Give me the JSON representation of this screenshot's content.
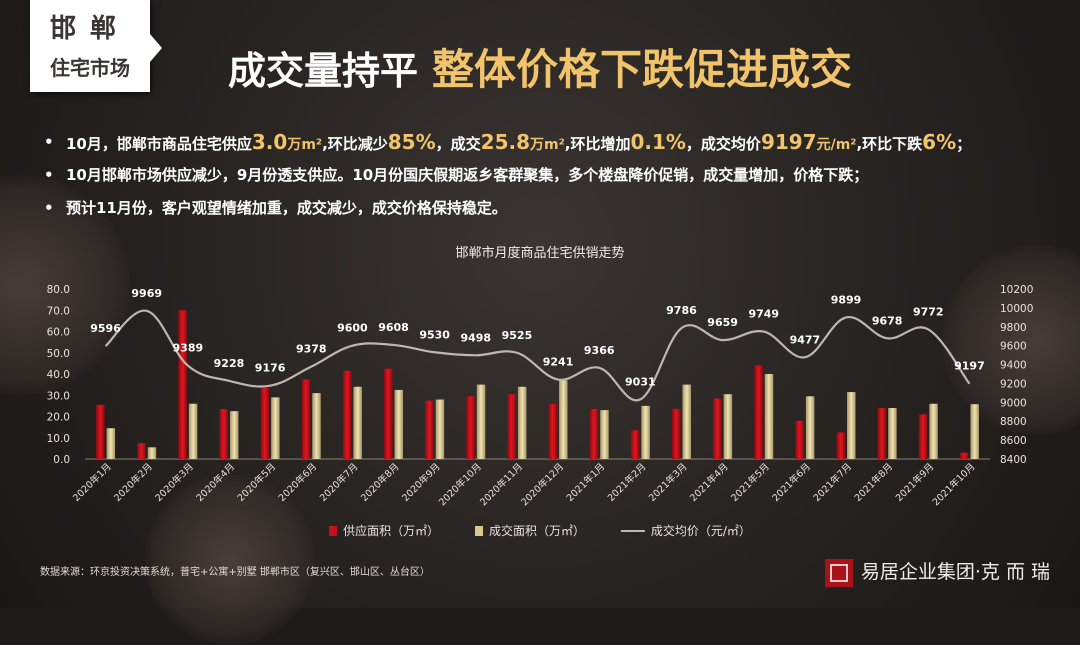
{
  "header": {
    "region_city": "邯郸",
    "region_sub": "住宅市场",
    "title_part1": "成交量持平",
    "title_part2": "整体价格下跌促进成交"
  },
  "bullets": {
    "b1": {
      "t1": "10月，邯郸市商品住宅供应",
      "v1": "3.0",
      "u1": "万m²",
      "t2": ",环比减少",
      "v2": "85%",
      "t3": "，成交",
      "v3": "25.8",
      "u3": "万m²",
      "t4": ",环比增加",
      "v4": "0.1%",
      "t5": "，成交均价",
      "v5": "9197",
      "u5": "元/m²",
      "t6": ",环比下跌",
      "v6": "6%",
      "t7": "；"
    },
    "b2": "10月邯郸市场供应减少，9月份透支供应。10月份国庆假期返乡客群聚集，多个楼盘降价促销，成交量增加，价格下跌；",
    "b3": "预计11月份，客户观望情绪加重，成交减少，成交价格保持稳定。"
  },
  "chart_data": {
    "type": "bar",
    "title": "邯郸市月度商品住宅供销走势",
    "categories": [
      "2020年1月",
      "2020年2月",
      "2020年3月",
      "2020年4月",
      "2020年5月",
      "2020年6月",
      "2020年7月",
      "2020年8月",
      "2020年9月",
      "2020年10月",
      "2020年11月",
      "2020年12月",
      "2021年1月",
      "2021年2月",
      "2021年3月",
      "2021年4月",
      "2021年5月",
      "2021年6月",
      "2021年7月",
      "2021年8月",
      "2021年9月",
      "2021年10月"
    ],
    "ylim": [
      0,
      80
    ],
    "y_ticks": [
      "0.0",
      "10.0",
      "20.0",
      "30.0",
      "40.0",
      "50.0",
      "60.0",
      "70.0",
      "80.0"
    ],
    "y2lim": [
      8400,
      10200
    ],
    "y2_ticks": [
      "8400",
      "8600",
      "8800",
      "9000",
      "9200",
      "9400",
      "9600",
      "9800",
      "10000",
      "10200"
    ],
    "series": [
      {
        "name": "供应面积（万㎡）",
        "type": "bar",
        "color": "#c8101b",
        "values": [
          25.5,
          7.5,
          70.0,
          23.5,
          33.5,
          37.5,
          41.5,
          42.5,
          27.5,
          29.5,
          30.5,
          26.0,
          23.5,
          13.5,
          23.5,
          28.5,
          44.0,
          18.0,
          12.5,
          24.0,
          21.0,
          3.0
        ]
      },
      {
        "name": "成交面积（万㎡）",
        "type": "bar",
        "color": "#d9c98e",
        "values": [
          14.5,
          5.5,
          26.0,
          22.5,
          29.0,
          31.0,
          34.0,
          32.5,
          28.0,
          35.0,
          34.0,
          37.0,
          23.0,
          25.0,
          35.0,
          30.5,
          40.0,
          29.5,
          31.5,
          24.0,
          26.0,
          25.8
        ]
      },
      {
        "name": "成交均价（元/㎡）",
        "type": "line",
        "color": "#bdb7b2",
        "values": [
          9596,
          9969,
          9389,
          9228,
          9176,
          9378,
          9600,
          9608,
          9530,
          9498,
          9525,
          9241,
          9366,
          9031,
          9786,
          9659,
          9749,
          9477,
          9899,
          9678,
          9772,
          9197
        ],
        "labels": [
          "9596",
          "9969",
          "9389",
          "9228",
          "9176",
          "9378",
          "9600",
          "9608",
          "9530",
          "9498",
          "9525",
          "9241",
          "9366",
          "9031",
          "9786",
          "9659",
          "9749",
          "9477",
          "9899",
          "9678",
          "9772",
          "9197"
        ]
      }
    ],
    "legend_position": "bottom",
    "grid": false
  },
  "footer": {
    "source": "数据来源：环京投资决策系统，普宅+公寓+别墅 邯郸市区（复兴区、邯山区、丛台区）",
    "brand": "易居企业集团·克 而 瑞"
  }
}
